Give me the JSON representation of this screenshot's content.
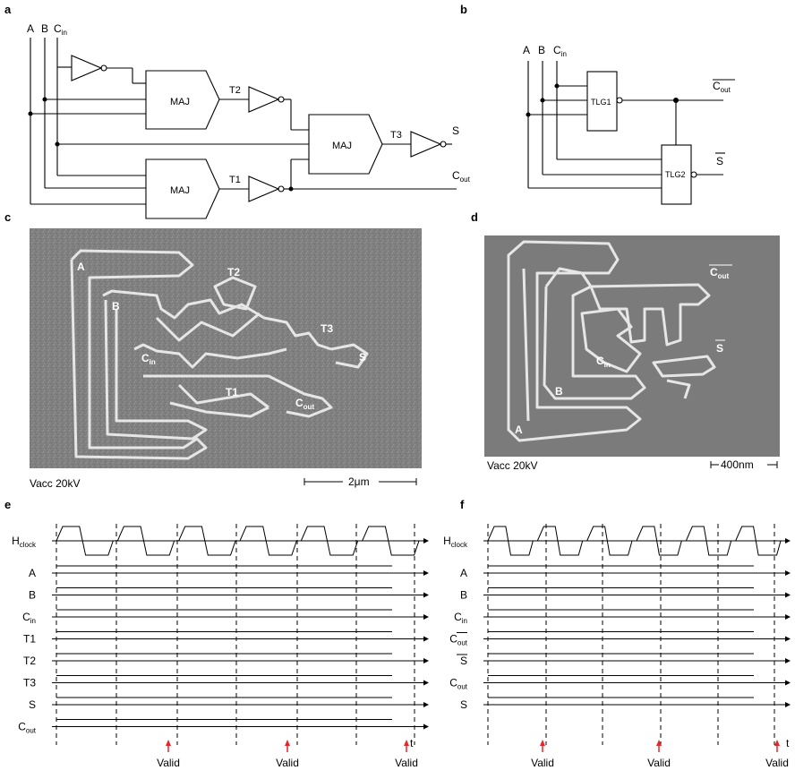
{
  "panels": {
    "a": "a",
    "b": "b",
    "c": "c",
    "d": "d",
    "e": "e",
    "f": "f"
  },
  "a": {
    "inputs": [
      "A",
      "B",
      "C"
    ],
    "cin_sub": "in",
    "maj": "MAJ",
    "t1": "T1",
    "t2": "T2",
    "t3": "T3",
    "s": "S",
    "cout": "C",
    "cout_sub": "out"
  },
  "b": {
    "inputs": [
      "A",
      "B",
      "C"
    ],
    "cin_sub": "in",
    "tlg1": "TLG1",
    "tlg2": "TLG2",
    "cout_bar": "C",
    "cout_sub": "out",
    "s_bar": "S"
  },
  "c": {
    "labels": {
      "A": "A",
      "B": "B",
      "C": "C",
      "cin_sub": "in",
      "T1": "T1",
      "T2": "T2",
      "T3": "T3",
      "S": "S",
      "cout": "C",
      "cout_sub": "out"
    },
    "vacc": "Vacc 20kV",
    "scale": "2μm"
  },
  "d": {
    "labels": {
      "A": "A",
      "B": "B",
      "C": "C",
      "cin_sub": "in",
      "cout": "C",
      "cout_sub": "out",
      "s": "S"
    },
    "vacc": "Vacc 20kV",
    "scale": "400nm"
  },
  "e": {
    "rows": [
      "A",
      "B",
      "C",
      "T1",
      "T2",
      "T3",
      "S",
      "C"
    ],
    "row_subs": [
      "",
      "",
      "in",
      "",
      "",
      "",
      "",
      "out"
    ],
    "hclock": "H",
    "hclock_sub": "clock",
    "valid": [
      "Valid",
      "Valid",
      "Valid"
    ],
    "t": "t"
  },
  "f": {
    "rows": [
      "A",
      "B",
      "C",
      "C",
      "S",
      "C",
      "S"
    ],
    "row_subs": [
      "",
      "",
      "in",
      "out",
      "",
      "out",
      ""
    ],
    "hclock": "H",
    "hclock_sub": "clock",
    "valid": [
      "Valid",
      "Valid",
      "Valid"
    ],
    "t": "t"
  },
  "colors": {
    "valid_arrow": "#e8262a",
    "ellipse": "#e8262a",
    "transition": "#57c7a3",
    "sem_bg": "#7e7e7e",
    "sem_line": "#e8e8e8"
  }
}
